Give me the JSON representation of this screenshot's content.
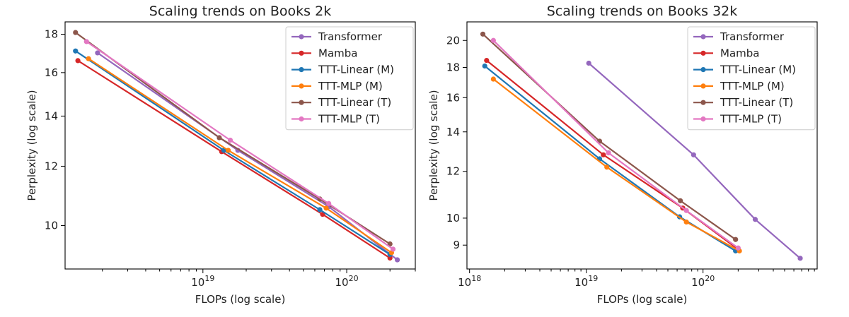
{
  "chart_data": [
    {
      "type": "line",
      "title": "Scaling trends on Books 2k",
      "xlabel": "FLOPs (log scale)",
      "ylabel": "Perplexity (log scale)",
      "xscale": "log",
      "yscale": "log",
      "xlim": [
        1.1e+18,
        3e+20
      ],
      "ylim": [
        8.75,
        18.7
      ],
      "x_ticks": [
        {
          "value": 1e+19,
          "base": "10",
          "exp": "19"
        },
        {
          "value": 1e+20,
          "base": "10",
          "exp": "20"
        }
      ],
      "y_ticks": [
        {
          "value": 10,
          "label": "10"
        },
        {
          "value": 12,
          "label": "12"
        },
        {
          "value": 14,
          "label": "14"
        },
        {
          "value": 16,
          "label": "16"
        },
        {
          "value": 18,
          "label": "18"
        }
      ],
      "grid": false,
      "legend_position": "top-right",
      "series": [
        {
          "name": "Transformer",
          "color": "#9467bd",
          "x": [
            1.85e+18,
            1.75e+19,
            7.5e+19,
            2.25e+20
          ],
          "y": [
            17.0,
            12.6,
            10.6,
            9.0
          ]
        },
        {
          "name": "Mamba",
          "color": "#d62728",
          "x": [
            1.35e+18,
            1.35e+19,
            6.8e+19,
            2e+20
          ],
          "y": [
            16.6,
            12.55,
            10.35,
            9.05
          ]
        },
        {
          "name": "TTT-Linear (M)",
          "color": "#1f77b4",
          "x": [
            1.3e+18,
            1.4e+19,
            6.5e+19,
            2e+20
          ],
          "y": [
            17.1,
            12.6,
            10.5,
            9.15
          ]
        },
        {
          "name": "TTT-MLP (M)",
          "color": "#ff7f0e",
          "x": [
            1.6e+18,
            1.5e+19,
            7.2e+19,
            2.05e+20
          ],
          "y": [
            16.7,
            12.6,
            10.55,
            9.2
          ]
        },
        {
          "name": "TTT-Linear (T)",
          "color": "#8c564b",
          "x": [
            1.3e+18,
            1.3e+19,
            6.5e+19,
            2e+20
          ],
          "y": [
            18.1,
            13.1,
            10.85,
            9.45
          ]
        },
        {
          "name": "TTT-MLP (T)",
          "color": "#e377c2",
          "x": [
            1.55e+18,
            1.55e+19,
            7.5e+19,
            2.1e+20
          ],
          "y": [
            17.6,
            13.0,
            10.7,
            9.3
          ]
        }
      ]
    },
    {
      "type": "line",
      "title": "Scaling trends on Books 32k",
      "xlabel": "FLOPs (log scale)",
      "ylabel": "Perplexity (log scale)",
      "xscale": "log",
      "yscale": "log",
      "xlim": [
        9.5e+17,
        9.5e+20
      ],
      "ylim": [
        8.2,
        21.5
      ],
      "x_ticks": [
        {
          "value": 1e+18,
          "base": "10",
          "exp": "18"
        },
        {
          "value": 1e+19,
          "base": "10",
          "exp": "19"
        },
        {
          "value": 1e+20,
          "base": "10",
          "exp": "20"
        }
      ],
      "y_ticks": [
        {
          "value": 9,
          "label": "9"
        },
        {
          "value": 10,
          "label": "10"
        },
        {
          "value": 12,
          "label": "12"
        },
        {
          "value": 14,
          "label": "14"
        },
        {
          "value": 16,
          "label": "16"
        },
        {
          "value": 18,
          "label": "18"
        },
        {
          "value": 20,
          "label": "20"
        }
      ],
      "grid": false,
      "legend_position": "top-right",
      "series": [
        {
          "name": "Transformer",
          "color": "#9467bd",
          "x": [
            1.05e+19,
            8.3e+19,
            2.8e+20,
            6.8e+20
          ],
          "y": [
            18.3,
            12.8,
            9.95,
            8.55
          ]
        },
        {
          "name": "Mamba",
          "color": "#d62728",
          "x": [
            1.4e+18,
            1.4e+19,
            6.7e+19,
            2e+20
          ],
          "y": [
            18.5,
            12.8,
            10.4,
            8.85
          ]
        },
        {
          "name": "TTT-Linear (M)",
          "color": "#1f77b4",
          "x": [
            1.35e+18,
            1.3e+19,
            6.3e+19,
            1.9e+20
          ],
          "y": [
            18.1,
            12.6,
            10.05,
            8.8
          ]
        },
        {
          "name": "TTT-MLP (M)",
          "color": "#ff7f0e",
          "x": [
            1.6e+18,
            1.5e+19,
            7.2e+19,
            2.05e+20
          ],
          "y": [
            17.2,
            12.2,
            9.85,
            8.8
          ]
        },
        {
          "name": "TTT-Linear (T)",
          "color": "#8c564b",
          "x": [
            1.3e+18,
            1.3e+19,
            6.4e+19,
            1.9e+20
          ],
          "y": [
            20.5,
            13.5,
            10.7,
            9.2
          ]
        },
        {
          "name": "TTT-MLP (T)",
          "color": "#e377c2",
          "x": [
            1.6e+18,
            1.55e+19,
            7.2e+19,
            2e+20
          ],
          "y": [
            20.0,
            12.9,
            10.3,
            8.9
          ]
        }
      ]
    }
  ]
}
